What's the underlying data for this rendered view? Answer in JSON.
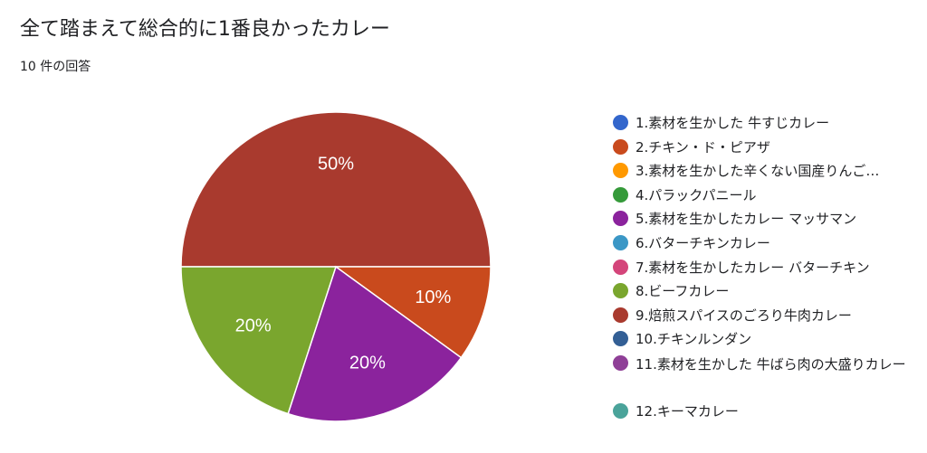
{
  "title": "全て踏まえて総合的に1番良かったカレー",
  "response_count": "10 件の回答",
  "chart_data": {
    "type": "pie",
    "categories": [
      "1.素材を生かした 牛すじカレー",
      "2.チキン・ド・ピアザ",
      "3.素材を生かした辛くない国産りんご…",
      "4.パラックパニール",
      "5.素材を生かしたカレー マッサマン",
      "6.バターチキンカレー",
      "7.素材を生かしたカレー バターチキン",
      "8.ビーフカレー",
      "9.焙煎スパイスのごろり牛肉カレー",
      "10.チキンルンダン",
      "11.素材を生かした 牛ばら肉の大盛りカレー",
      "12.キーマカレー"
    ],
    "values": [
      0,
      10,
      0,
      0,
      20,
      0,
      0,
      20,
      50,
      0,
      0,
      0
    ],
    "data_labels": [
      "",
      "10%",
      "",
      "",
      "20%",
      "",
      "",
      "20%",
      "50%",
      "",
      "",
      ""
    ],
    "colors": [
      "#3366cc",
      "#c94a1d",
      "#ff9900",
      "#359a3a",
      "#8b239d",
      "#3b97c6",
      "#d4457a",
      "#7aa62e",
      "#a93a2e",
      "#335f95",
      "#8f3f97",
      "#4aa39a"
    ],
    "legend_position": "right"
  }
}
